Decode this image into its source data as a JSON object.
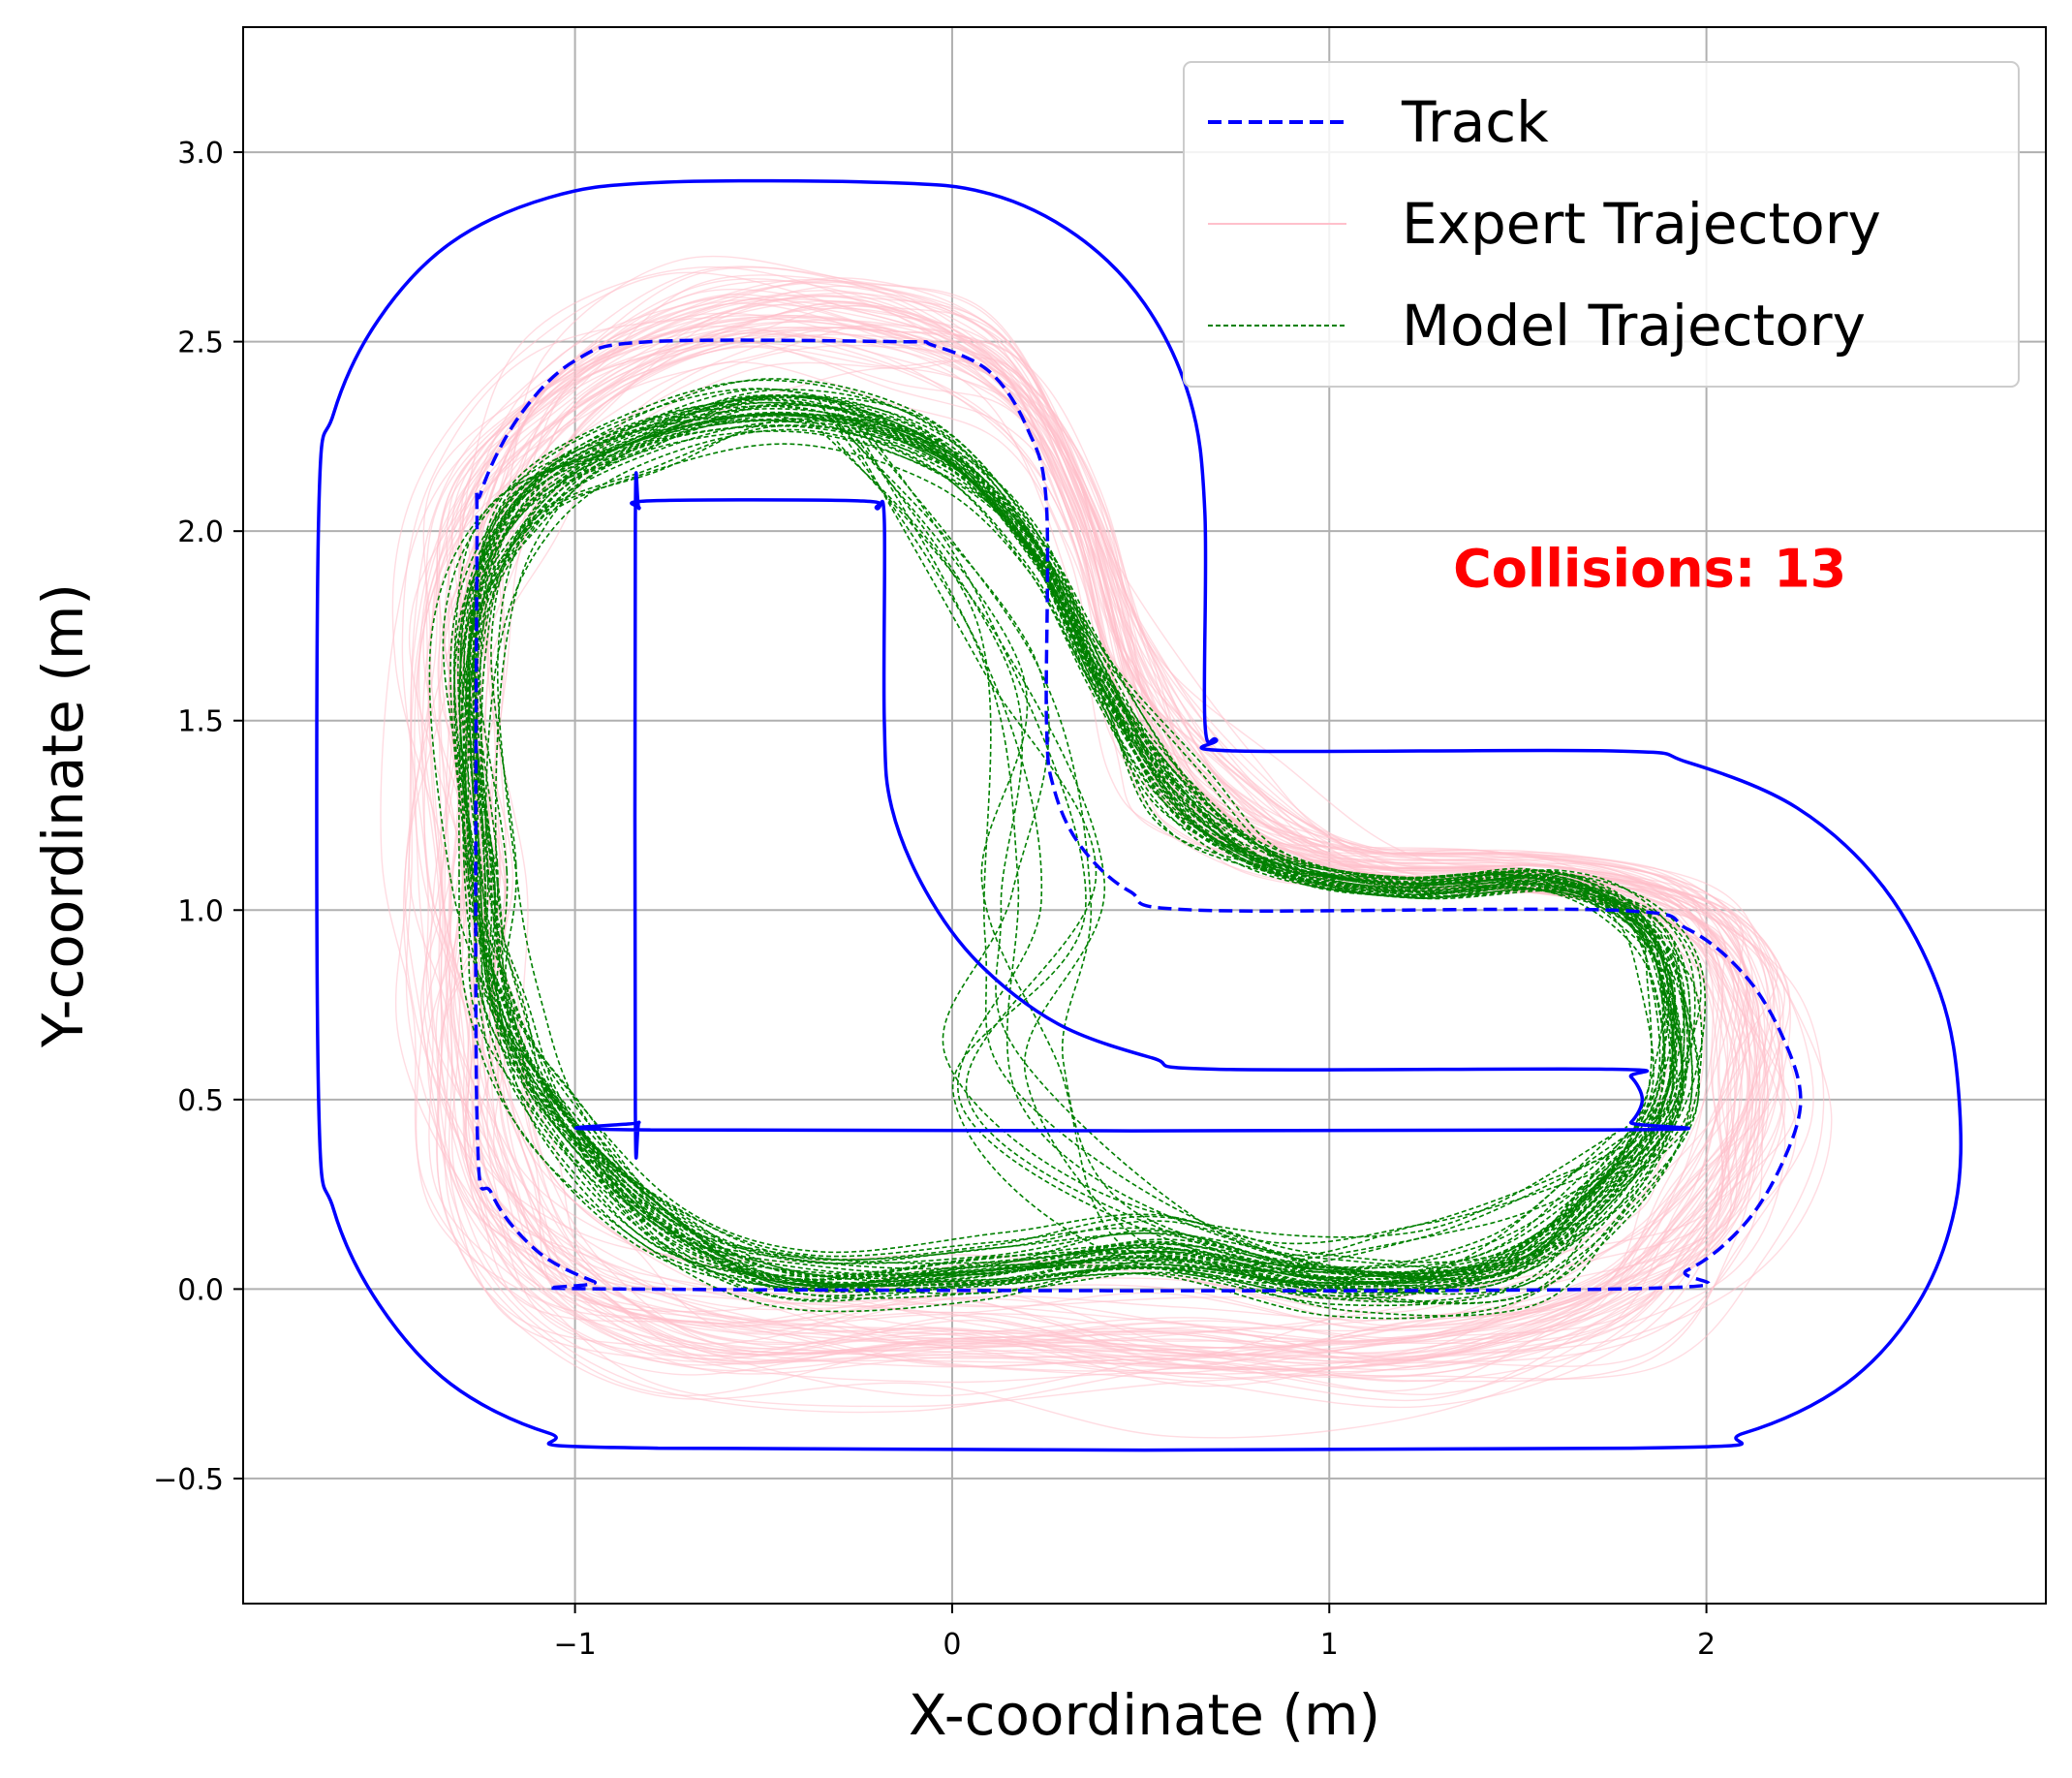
{
  "chart_data": {
    "type": "line",
    "xlabel": "X-coordinate (m)",
    "ylabel": "Y-coordinate (m)",
    "xlim": [
      -1.88,
      2.9
    ],
    "ylim": [
      -0.83,
      3.33
    ],
    "xticks": [
      -1,
      0,
      1,
      2
    ],
    "xtick_labels": [
      "−1",
      "0",
      "1",
      "2"
    ],
    "yticks": [
      -0.5,
      0.0,
      0.5,
      1.0,
      1.5,
      2.0,
      2.5,
      3.0
    ],
    "ytick_labels": [
      "−0.5",
      "0.0",
      "0.5",
      "1.0",
      "1.5",
      "2.0",
      "2.5",
      "3.0"
    ],
    "grid": true,
    "legend_position": "top-right",
    "legend": [
      {
        "label": "Track",
        "color": "#0000ff",
        "style": "dashed"
      },
      {
        "label": "Expert Trajectory",
        "color": "#ffc0cb",
        "style": "solid"
      },
      {
        "label": "Model Trajectory",
        "color": "#008000",
        "style": "dashed"
      }
    ],
    "annotation": {
      "text": "Collisions: 13",
      "color": "#ff0000",
      "x": 1.85,
      "y": 1.9
    },
    "track_centerline": [
      [
        -0.85,
        0.0
      ],
      [
        1.75,
        0.0
      ],
      [
        1.95,
        0.05
      ],
      [
        2.1,
        0.17
      ],
      [
        2.2,
        0.33
      ],
      [
        2.25,
        0.5
      ],
      [
        2.2,
        0.67
      ],
      [
        2.1,
        0.83
      ],
      [
        1.95,
        0.95
      ],
      [
        1.75,
        1.0
      ],
      [
        0.65,
        1.0
      ],
      [
        0.47,
        1.05
      ],
      [
        0.34,
        1.17
      ],
      [
        0.27,
        1.32
      ],
      [
        0.25,
        1.5
      ],
      [
        0.25,
        2.07
      ],
      [
        0.2,
        2.27
      ],
      [
        0.1,
        2.42
      ],
      [
        -0.05,
        2.49
      ],
      [
        -0.15,
        2.5
      ],
      [
        -0.8,
        2.5
      ],
      [
        -1.0,
        2.45
      ],
      [
        -1.15,
        2.3
      ],
      [
        -1.25,
        2.1
      ],
      [
        -1.26,
        1.95
      ],
      [
        -1.26,
        0.45
      ],
      [
        -1.22,
        0.25
      ],
      [
        -1.1,
        0.1
      ],
      [
        -0.95,
        0.02
      ],
      [
        -0.85,
        0.0
      ]
    ],
    "track_outer": [
      [
        -0.78,
        -0.42
      ],
      [
        1.8,
        -0.42
      ],
      [
        2.1,
        -0.38
      ],
      [
        2.37,
        -0.25
      ],
      [
        2.56,
        -0.04
      ],
      [
        2.66,
        0.22
      ],
      [
        2.67,
        0.5
      ],
      [
        2.62,
        0.78
      ],
      [
        2.47,
        1.06
      ],
      [
        2.24,
        1.27
      ],
      [
        1.95,
        1.39
      ],
      [
        1.75,
        1.42
      ],
      [
        0.75,
        1.42
      ],
      [
        0.7,
        1.45
      ],
      [
        0.67,
        1.5
      ],
      [
        0.67,
        2.05
      ],
      [
        0.63,
        2.35
      ],
      [
        0.51,
        2.6
      ],
      [
        0.33,
        2.78
      ],
      [
        0.1,
        2.89
      ],
      [
        -0.18,
        2.92
      ],
      [
        -0.78,
        2.92
      ],
      [
        -1.07,
        2.88
      ],
      [
        -1.33,
        2.76
      ],
      [
        -1.52,
        2.56
      ],
      [
        -1.64,
        2.31
      ],
      [
        -1.68,
        2.03
      ],
      [
        -1.68,
        0.5
      ],
      [
        -1.64,
        0.21
      ],
      [
        -1.52,
        -0.04
      ],
      [
        -1.33,
        -0.25
      ],
      [
        -1.07,
        -0.38
      ],
      [
        -0.78,
        -0.42
      ]
    ],
    "track_inner": [
      [
        -0.8,
        0.42
      ],
      [
        1.75,
        0.42
      ],
      [
        1.8,
        0.44
      ],
      [
        1.83,
        0.5
      ],
      [
        1.8,
        0.56
      ],
      [
        1.75,
        0.58
      ],
      [
        0.7,
        0.58
      ],
      [
        0.53,
        0.61
      ],
      [
        0.28,
        0.7
      ],
      [
        0.07,
        0.86
      ],
      [
        -0.07,
        1.05
      ],
      [
        -0.16,
        1.27
      ],
      [
        -0.18,
        1.5
      ],
      [
        -0.18,
        2.03
      ],
      [
        -0.2,
        2.06
      ],
      [
        -0.25,
        2.08
      ],
      [
        -0.8,
        2.08
      ],
      [
        -0.83,
        2.06
      ],
      [
        -0.84,
        2.03
      ],
      [
        -0.84,
        0.47
      ],
      [
        -0.83,
        0.44
      ],
      [
        -0.8,
        0.42
      ]
    ],
    "expert_path": [
      [
        -1.3,
        1.1
      ],
      [
        -1.32,
        1.65
      ],
      [
        -1.25,
        2.05
      ],
      [
        -1.0,
        2.37
      ],
      [
        -0.6,
        2.55
      ],
      [
        -0.2,
        2.55
      ],
      [
        0.15,
        2.4
      ],
      [
        0.35,
        2.05
      ],
      [
        0.48,
        1.62
      ],
      [
        0.7,
        1.3
      ],
      [
        1.05,
        1.12
      ],
      [
        1.55,
        1.1
      ],
      [
        1.92,
        1.02
      ],
      [
        2.1,
        0.82
      ],
      [
        2.12,
        0.5
      ],
      [
        2.0,
        0.18
      ],
      [
        1.7,
        -0.05
      ],
      [
        1.2,
        -0.17
      ],
      [
        0.6,
        -0.15
      ],
      [
        0.0,
        -0.12
      ],
      [
        -0.6,
        -0.12
      ],
      [
        -1.0,
        0.02
      ],
      [
        -1.22,
        0.3
      ],
      [
        -1.3,
        0.7
      ],
      [
        -1.3,
        1.1
      ]
    ],
    "model_path": [
      [
        -1.25,
        1.1
      ],
      [
        -1.28,
        1.7
      ],
      [
        -1.15,
        2.05
      ],
      [
        -0.85,
        2.23
      ],
      [
        -0.45,
        2.32
      ],
      [
        -0.05,
        2.22
      ],
      [
        0.22,
        1.95
      ],
      [
        0.4,
        1.6
      ],
      [
        0.6,
        1.3
      ],
      [
        0.85,
        1.12
      ],
      [
        1.2,
        1.06
      ],
      [
        1.55,
        1.08
      ],
      [
        1.78,
        1.0
      ],
      [
        1.9,
        0.82
      ],
      [
        1.9,
        0.5
      ],
      [
        1.72,
        0.25
      ],
      [
        1.45,
        0.05
      ],
      [
        1.0,
        0.02
      ],
      [
        0.55,
        0.1
      ],
      [
        0.1,
        0.05
      ],
      [
        -0.4,
        0.02
      ],
      [
        -0.75,
        0.15
      ],
      [
        -1.05,
        0.45
      ],
      [
        -1.2,
        0.75
      ],
      [
        -1.25,
        1.1
      ]
    ],
    "expert_trajectory_count": 60,
    "model_trajectory_count": 40
  }
}
